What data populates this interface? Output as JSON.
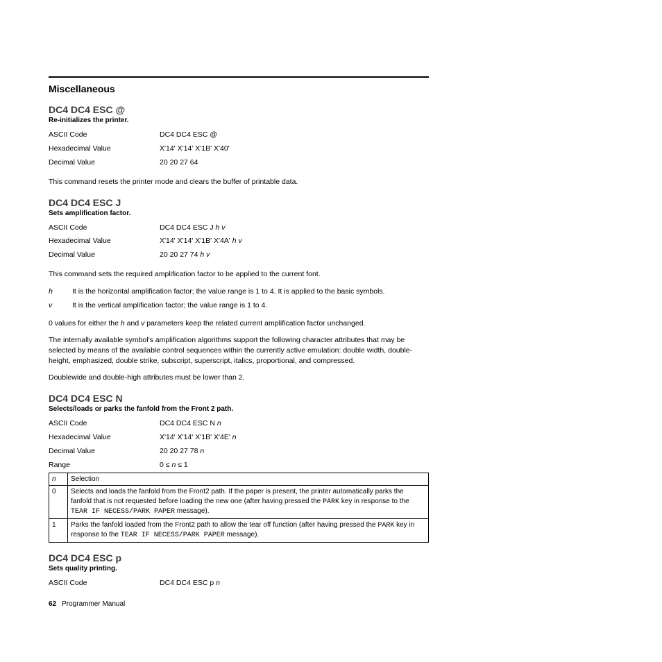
{
  "section_title": "Miscellaneous",
  "commands": [
    {
      "title": "DC4 DC4 ESC @",
      "subtitle": "Re-initializes the printer.",
      "rows": [
        {
          "label": "ASCII Code",
          "value": "DC4 DC4 ESC @"
        },
        {
          "label": "Hexadecimal Value",
          "value": "X'14' X'14' X'1B' X'40'"
        },
        {
          "label": "Decimal Value",
          "value": "20 20 27 64"
        }
      ],
      "after_para": "This command resets the printer mode and clears the buffer of printable data."
    },
    {
      "title": "DC4 DC4 ESC J",
      "subtitle": "Sets amplification factor.",
      "rows": [
        {
          "label": "ASCII Code",
          "value": "DC4 DC4 ESC J ",
          "value_italic": "h v"
        },
        {
          "label": "Hexadecimal Value",
          "value": "X'14' X'14' X'1B' X'4A' ",
          "value_italic": "h v"
        },
        {
          "label": "Decimal Value",
          "value": "20 20 27 74 ",
          "value_italic": "h v"
        }
      ],
      "after_para": "This command sets the required amplification factor to be applied to the current font.",
      "defs": [
        {
          "term": "h",
          "desc": "It is the horizontal amplification factor; the value range is 1 to 4. It is applied to the basic symbols."
        },
        {
          "term": "v",
          "desc": "It is the vertical amplification factor; the value range is 1 to 4."
        }
      ],
      "paras": [
        "0 values for either the |h| and |v| parameters keep the related current amplification factor unchanged.",
        "The internally available symbol's amplification algorithms support the following character attributes that may be selected by means of the available control sequences within the currently active emulation: double width, double-height, emphasized, double strike, subscript, superscript, italics, proportional, and compressed.",
        "Doublewide and double-high attributes must be lower than 2."
      ]
    },
    {
      "title": "DC4 DC4 ESC N",
      "subtitle": "Selects/loads or parks the fanfold from the Front 2 path.",
      "rows": [
        {
          "label": "ASCII Code",
          "value": "DC4 DC4 ESC N ",
          "value_italic": "n"
        },
        {
          "label": "Hexadecimal Value",
          "value": "X'14' X'14' X'1B' X'4E' ",
          "value_italic": "n"
        },
        {
          "label": "Decimal Value",
          "value": "20 20 27 78 ",
          "value_italic": "n"
        },
        {
          "label": "Range",
          "value_html": "0 ≤ <span class=\"i\">n</span> ≤ 1"
        }
      ],
      "table": {
        "header": [
          "n",
          "Selection"
        ],
        "rows": [
          {
            "n": "0",
            "parts": [
              {
                "t": "Selects and loads the fanfold from the Front2 path. If the paper is present, the printer automatically parks the fanfold that is not requested before loading the new one (after having pressed the "
              },
              {
                "t": "PARK",
                "mono": true
              },
              {
                "t": " key in response to the "
              },
              {
                "t": "TEAR IF NECESS/PARK PAPER",
                "mono": true
              },
              {
                "t": " message)."
              }
            ]
          },
          {
            "n": "1",
            "parts": [
              {
                "t": "Parks the fanfold loaded from the Front2 path to allow the tear off function (after having pressed the "
              },
              {
                "t": "PARK",
                "mono": true
              },
              {
                "t": " key in response to the "
              },
              {
                "t": "TEAR IF NECESS/PARK PAPER",
                "mono": true
              },
              {
                "t": " message)."
              }
            ]
          }
        ]
      }
    },
    {
      "title": "DC4 DC4 ESC p",
      "subtitle": "Sets quality printing.",
      "rows": [
        {
          "label": "ASCII Code",
          "value": "DC4 DC4 ESC p ",
          "value_italic": "n"
        }
      ]
    }
  ],
  "footer": {
    "page": "62",
    "label": "Programmer Manual"
  }
}
